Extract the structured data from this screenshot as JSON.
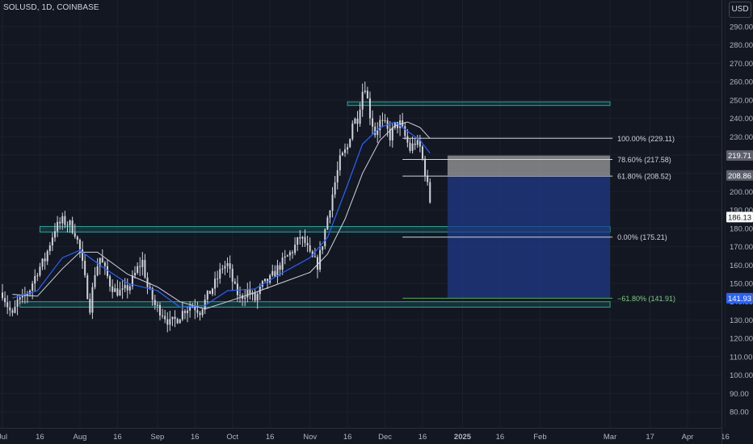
{
  "chart_header": {
    "title": "SOLUSD, 1D, COINBASE",
    "currency": "USD"
  },
  "chart_data": {
    "type": "candlestick",
    "symbol": "SOLUSD",
    "interval": "1D",
    "exchange": "COINBASE",
    "x_ticks": [
      "Jul",
      "16",
      "Aug",
      "16",
      "Sep",
      "16",
      "Oct",
      "16",
      "Nov",
      "16",
      "Dec",
      "16",
      "2025",
      "16",
      "Feb",
      "Mar",
      "17",
      "Apr",
      "16"
    ],
    "y_ticks": [
      80,
      90,
      100,
      110,
      120,
      130,
      140,
      150,
      160,
      170,
      180,
      190,
      200,
      210,
      220,
      230,
      240,
      250,
      260,
      270,
      280,
      290
    ],
    "y_tick_labels": [
      "80.00",
      "90.00",
      "100.00",
      "110.00",
      "120.00",
      "130.00",
      "140.00",
      "150.00",
      "160.00",
      "170.00",
      "180.00",
      "190.00",
      "200.00",
      "210.00",
      "220.00",
      "230.00",
      "240.00",
      "250.00",
      "260.00",
      "270.00",
      "280.00",
      "290.00"
    ],
    "ylim": [
      75,
      300
    ],
    "colors": {
      "up": "#d1d4dc",
      "down": "#d1d4dc",
      "ma_fast": "#2962ff",
      "ma_slow": "#d1d4dc",
      "zone": "#26a69a",
      "position": "#1e3a8a",
      "stop": "#9e9e9e",
      "neg_fib": "#4caf50"
    },
    "close_path": [
      [
        "Jul 1",
        145
      ],
      [
        "Jul 3",
        138
      ],
      [
        "Jul 5",
        132
      ],
      [
        "Jul 7",
        140
      ],
      [
        "Jul 9",
        141
      ],
      [
        "Jul 12",
        147
      ],
      [
        "Jul 15",
        157
      ],
      [
        "Jul 18",
        163
      ],
      [
        "Jul 20",
        172
      ],
      [
        "Jul 22",
        180
      ],
      [
        "Jul 25",
        184
      ],
      [
        "Jul 28",
        182
      ],
      [
        "Jul 30",
        178
      ],
      [
        "Aug 1",
        168
      ],
      [
        "Aug 3",
        152
      ],
      [
        "Aug 5",
        137
      ],
      [
        "Aug 7",
        156
      ],
      [
        "Aug 9",
        164
      ],
      [
        "Aug 11",
        157
      ],
      [
        "Aug 13",
        150
      ],
      [
        "Aug 15",
        146
      ],
      [
        "Aug 18",
        145
      ],
      [
        "Aug 21",
        149
      ],
      [
        "Aug 24",
        158
      ],
      [
        "Aug 26",
        162
      ],
      [
        "Aug 28",
        148
      ],
      [
        "Aug 31",
        138
      ],
      [
        "Sep 3",
        134
      ],
      [
        "Sep 6",
        128
      ],
      [
        "Sep 9",
        131
      ],
      [
        "Sep 12",
        136
      ],
      [
        "Sep 15",
        138
      ],
      [
        "Sep 18",
        135
      ],
      [
        "Sep 21",
        143
      ],
      [
        "Sep 24",
        150
      ],
      [
        "Sep 27",
        159
      ],
      [
        "Sep 29",
        160
      ],
      [
        "Oct 2",
        147
      ],
      [
        "Oct 4",
        142
      ],
      [
        "Oct 7",
        146
      ],
      [
        "Oct 10",
        141
      ],
      [
        "Oct 13",
        149
      ],
      [
        "Oct 16",
        152
      ],
      [
        "Oct 19",
        158
      ],
      [
        "Oct 22",
        163
      ],
      [
        "Oct 25",
        168
      ],
      [
        "Oct 28",
        175
      ],
      [
        "Oct 30",
        172
      ],
      [
        "Nov 1",
        165
      ],
      [
        "Nov 4",
        160
      ],
      [
        "Nov 6",
        172
      ],
      [
        "Nov 8",
        186
      ],
      [
        "Nov 11",
        205
      ],
      [
        "Nov 13",
        217
      ],
      [
        "Nov 16",
        224
      ],
      [
        "Nov 18",
        238
      ],
      [
        "Nov 20",
        240
      ],
      [
        "Nov 22",
        255
      ],
      [
        "Nov 23",
        258
      ],
      [
        "Nov 25",
        242
      ],
      [
        "Nov 27",
        232
      ],
      [
        "Nov 29",
        238
      ],
      [
        "Dec 1",
        236
      ],
      [
        "Dec 3",
        230
      ],
      [
        "Dec 5",
        236
      ],
      [
        "Dec 7",
        237
      ],
      [
        "Dec 9",
        230
      ],
      [
        "Dec 11",
        223
      ],
      [
        "Dec 13",
        227
      ],
      [
        "Dec 15",
        224
      ],
      [
        "Dec 17",
        211
      ],
      [
        "Dec 19",
        195
      ],
      [
        "Dec 20",
        186
      ]
    ],
    "ma_fast_path": [
      [
        "Jul 5",
        142
      ],
      [
        "Jul 15",
        146
      ],
      [
        "Jul 25",
        164
      ],
      [
        "Aug 1",
        168
      ],
      [
        "Aug 10",
        159
      ],
      [
        "Aug 20",
        150
      ],
      [
        "Sep 1",
        146
      ],
      [
        "Sep 10",
        137
      ],
      [
        "Sep 20",
        138
      ],
      [
        "Sep 29",
        146
      ],
      [
        "Oct 10",
        147
      ],
      [
        "Oct 20",
        155
      ],
      [
        "Nov 1",
        164
      ],
      [
        "Nov 8",
        175
      ],
      [
        "Nov 15",
        200
      ],
      [
        "Nov 22",
        226
      ],
      [
        "Nov 29",
        235
      ],
      [
        "Dec 5",
        238
      ],
      [
        "Dec 10",
        233
      ],
      [
        "Dec 15",
        228
      ],
      [
        "Dec 19",
        221
      ]
    ],
    "ma_slow_path": [
      [
        "Jul 5",
        144
      ],
      [
        "Jul 15",
        143
      ],
      [
        "Jul 25",
        158
      ],
      [
        "Aug 1",
        167
      ],
      [
        "Aug 8",
        167
      ],
      [
        "Aug 20",
        155
      ],
      [
        "Sep 1",
        148
      ],
      [
        "Sep 10",
        140
      ],
      [
        "Sep 20",
        136
      ],
      [
        "Sep 29",
        140
      ],
      [
        "Oct 10",
        145
      ],
      [
        "Oct 20",
        150
      ],
      [
        "Nov 1",
        156
      ],
      [
        "Nov 8",
        166
      ],
      [
        "Nov 15",
        185
      ],
      [
        "Nov 22",
        210
      ],
      [
        "Nov 29",
        228
      ],
      [
        "Dec 5",
        236
      ],
      [
        "Dec 10",
        238
      ],
      [
        "Dec 15",
        235
      ],
      [
        "Dec 19",
        229
      ]
    ],
    "zones": [
      {
        "name": "resistance-zone",
        "low": 247,
        "high": 249,
        "from": "Nov 16",
        "to": "Mar 1"
      },
      {
        "name": "mid-support-zone",
        "low": 178,
        "high": 181,
        "from": "Jul 16",
        "to": "Mar 1"
      },
      {
        "name": "lower-support-zone",
        "low": 137,
        "high": 140,
        "from": "Jul 8",
        "to": "Mar 1"
      }
    ],
    "fib_levels": [
      {
        "text": "100.00% (229.11)",
        "value": 229.11
      },
      {
        "text": "78.60% (217.58)",
        "value": 217.58
      },
      {
        "text": "61.80% (208.52)",
        "value": 208.52
      },
      {
        "text": "0.00% (175.21)",
        "value": 175.21
      },
      {
        "text": "−61.80% (141.91)",
        "value": 141.91
      }
    ],
    "position": {
      "stop_low": 208.86,
      "stop_high": 219.71,
      "entry": 208.86,
      "target": 141.93,
      "from": "Dec 26",
      "to": "Mar 1"
    },
    "price_labels": [
      {
        "text": "219.71",
        "value": 219.71,
        "color": "#5d606b"
      },
      {
        "text": "208.86",
        "value": 208.86,
        "color": "#5d606b"
      },
      {
        "text": "186.13",
        "value": 186.13,
        "color": "#ffffff"
      },
      {
        "text": "141.93",
        "value": 141.93,
        "color": "#2962ff"
      }
    ]
  }
}
